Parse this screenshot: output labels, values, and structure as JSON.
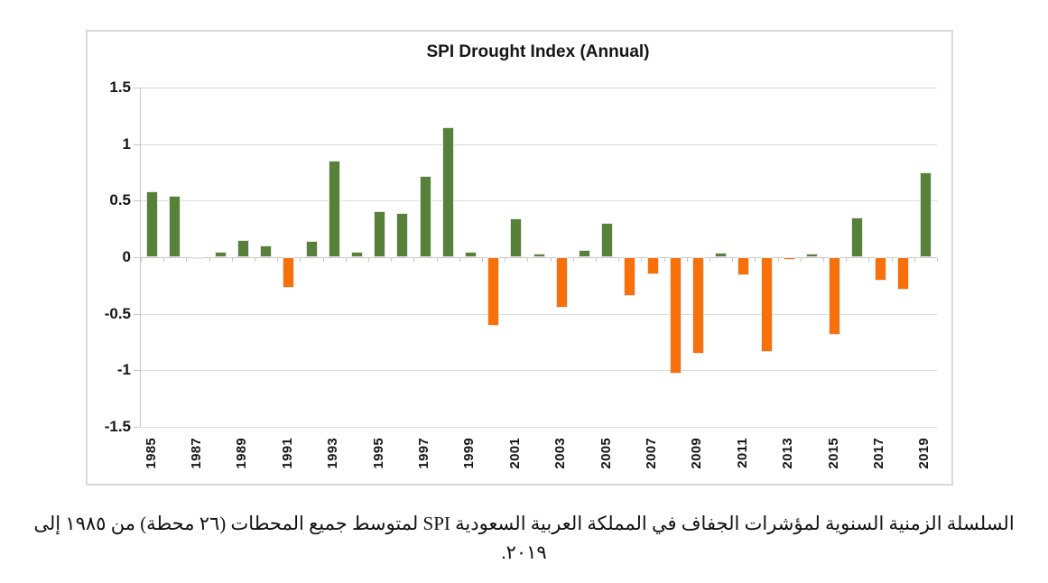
{
  "chart_data": {
    "type": "bar",
    "title": "SPI Drought Index (Annual)",
    "xlabel": "",
    "ylabel": "",
    "ylim": [
      -1.5,
      1.5
    ],
    "ytick_interval": 0.5,
    "yticks": [
      "1.5",
      "1",
      "0.5",
      "0",
      "-0.5",
      "-1",
      "-1.5"
    ],
    "grid": true,
    "legend": "none",
    "x": [
      1985,
      1986,
      1987,
      1988,
      1989,
      1990,
      1991,
      1992,
      1993,
      1994,
      1995,
      1996,
      1997,
      1998,
      1999,
      2000,
      2001,
      2002,
      2003,
      2004,
      2005,
      2006,
      2007,
      2008,
      2009,
      2010,
      2011,
      2012,
      2013,
      2014,
      2015,
      2016,
      2017,
      2018,
      2019
    ],
    "values": [
      0.58,
      0.54,
      -0.01,
      0.05,
      0.15,
      0.1,
      -0.27,
      0.14,
      0.85,
      0.05,
      0.41,
      0.39,
      0.72,
      1.15,
      0.05,
      -0.61,
      0.34,
      0.03,
      -0.45,
      0.06,
      0.3,
      -0.34,
      -0.15,
      -1.03,
      -0.85,
      0.04,
      -0.16,
      -0.84,
      -0.02,
      0.03,
      -0.69,
      0.35,
      -0.21,
      -0.29,
      0.75
    ],
    "xtick_labels_shown": [
      "1985",
      "1987",
      "1989",
      "1991",
      "1993",
      "1995",
      "1997",
      "1999",
      "2001",
      "2003",
      "2005",
      "2007",
      "2009",
      "2011",
      "2013",
      "2015",
      "2017",
      "2019"
    ],
    "positive_color": "#578138",
    "negative_color": "#F8700A",
    "bar_outline_color": "#e6e6e6",
    "gridline_color": "#dcdcdc"
  },
  "caption": {
    "line1": "السلسلة الزمنية السنوية لمؤشرات الجفاف في المملكة العربية السعودية SPI لمتوسط جميع المحطات (٢٦ محطة) من ١٩٨٥ إلى",
    "line2": "٢٠١٩."
  }
}
